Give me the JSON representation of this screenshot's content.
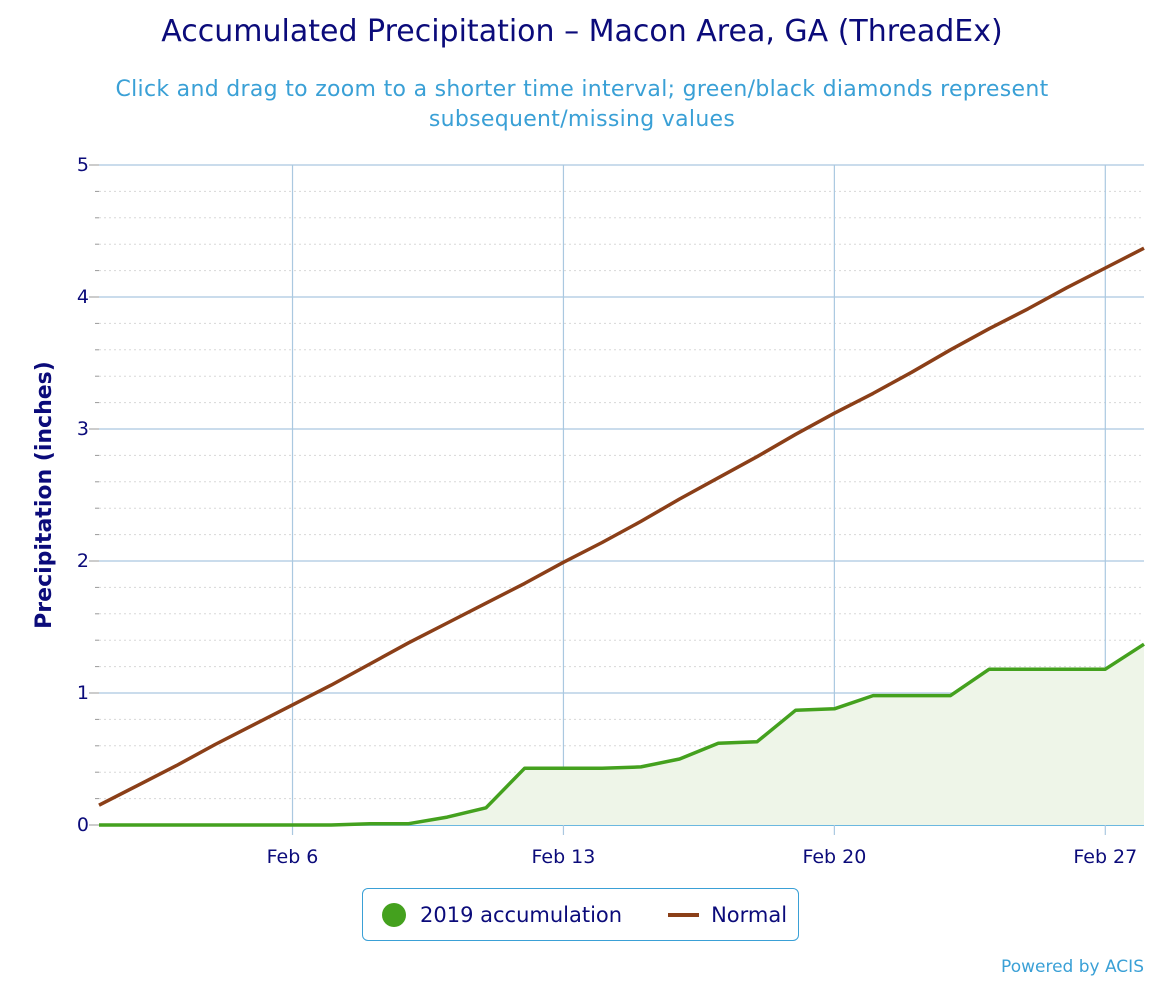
{
  "colors": {
    "title": "#0b0b7a",
    "subtitle": "#3aa0d6",
    "accumulation": "#44a11e",
    "accumulation_fill": "#eef5e8",
    "normal": "#8b3f18",
    "grid": "#aac8e0",
    "minor_grid": "#d8d8d8",
    "axis_text": "#0b0b7a"
  },
  "chart_data": {
    "type": "line",
    "title": "Accumulated Precipitation – Macon Area, GA (ThreadEx)",
    "subtitle": "Click and drag to zoom to a shorter time interval; green/black diamonds represent subsequent/missing values",
    "ylabel": "Precipitation (inches)",
    "xlabel": "",
    "ylim": [
      0,
      5
    ],
    "yticks": [
      "0",
      "1",
      "2",
      "3",
      "4",
      "5"
    ],
    "xrange_days": [
      1,
      28
    ],
    "xticks": [
      {
        "day": 6,
        "label": "Feb 6"
      },
      {
        "day": 13,
        "label": "Feb 13"
      },
      {
        "day": 20,
        "label": "Feb 20"
      },
      {
        "day": 27,
        "label": "Feb 27"
      }
    ],
    "grid": true,
    "legend_position": "bottom-center",
    "series": [
      {
        "name": "2019 accumulation",
        "kind": "area",
        "x": [
          1,
          2,
          3,
          4,
          5,
          6,
          7,
          8,
          9,
          10,
          11,
          12,
          13,
          14,
          15,
          16,
          17,
          18,
          19,
          20,
          21,
          22,
          23,
          24,
          25,
          26,
          27,
          28
        ],
        "values": [
          0.0,
          0.0,
          0.0,
          0.0,
          0.0,
          0.0,
          0.0,
          0.01,
          0.01,
          0.06,
          0.13,
          0.43,
          0.43,
          0.43,
          0.44,
          0.5,
          0.62,
          0.63,
          0.87,
          0.88,
          0.98,
          0.98,
          0.98,
          1.18,
          1.18,
          1.18,
          1.18,
          1.37
        ]
      },
      {
        "name": "Normal",
        "kind": "line",
        "x": [
          1,
          2,
          3,
          4,
          5,
          6,
          7,
          8,
          9,
          10,
          11,
          12,
          13,
          14,
          15,
          16,
          17,
          18,
          19,
          20,
          21,
          22,
          23,
          24,
          25,
          26,
          27,
          28
        ],
        "values": [
          0.15,
          0.3,
          0.45,
          0.61,
          0.76,
          0.91,
          1.06,
          1.22,
          1.38,
          1.53,
          1.68,
          1.83,
          1.99,
          2.14,
          2.3,
          2.47,
          2.63,
          2.79,
          2.96,
          3.12,
          3.27,
          3.43,
          3.6,
          3.76,
          3.91,
          4.07,
          4.22,
          4.37
        ]
      }
    ]
  },
  "credits": "Powered by ACIS"
}
